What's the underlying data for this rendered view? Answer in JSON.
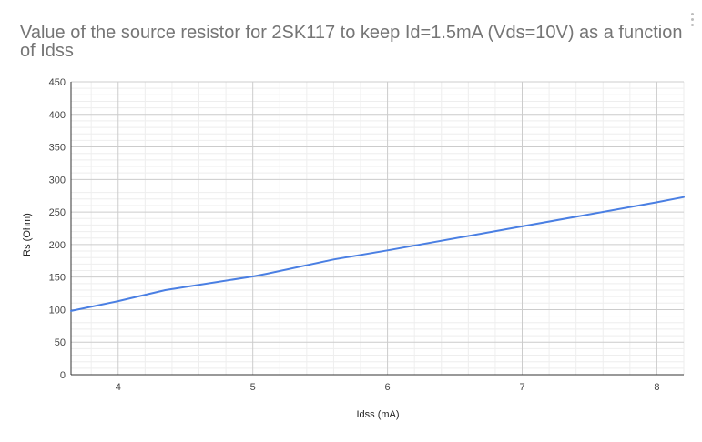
{
  "chart_data": {
    "type": "line",
    "title": "Value of the source resistor for 2SK117 to keep Id=1.5mA (Vds=10V) as a function of Idss",
    "xlabel": "Idss (mA)",
    "ylabel": "Rs (Ohm)",
    "xlim": [
      3.65,
      8.2
    ],
    "ylim": [
      0,
      450
    ],
    "x_ticks": [
      4,
      5,
      6,
      7,
      8
    ],
    "y_ticks": [
      0,
      50,
      100,
      150,
      200,
      250,
      300,
      350,
      400,
      450
    ],
    "grid": true,
    "legend": "none",
    "series": [
      {
        "color": "#4a7fe3",
        "x": [
          3.65,
          4.0,
          4.35,
          5.0,
          5.1,
          5.6,
          6.0,
          7.0,
          8.0,
          8.2
        ],
        "y": [
          98,
          113,
          130,
          151,
          155,
          177,
          191,
          228,
          265,
          273
        ]
      }
    ]
  }
}
